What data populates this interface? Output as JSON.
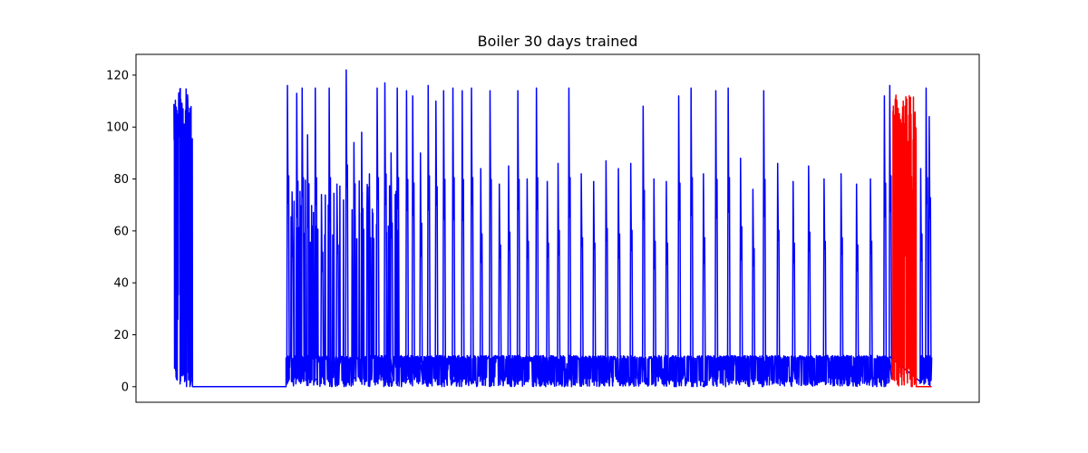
{
  "chart_data": {
    "type": "line",
    "title": "Boiler 30 days trained",
    "xlabel": "",
    "ylabel": "",
    "x_ticks_visible": false,
    "ylim": [
      -6,
      128
    ],
    "y_ticks": [
      0,
      20,
      40,
      60,
      80,
      100,
      120
    ],
    "grid": false,
    "legend": "none",
    "series": [
      {
        "color": "#0000ff",
        "description_x": "time index (unlabeled)",
        "segments": [
          {
            "type": "noise_burst",
            "x_range": [
              0.0,
              0.024
            ],
            "low": 0,
            "high": 115
          },
          {
            "type": "flat",
            "x_range": [
              0.024,
              0.145
            ],
            "value": 0
          },
          {
            "type": "burst_region",
            "x_range": [
              0.145,
              0.925
            ],
            "baseline_low": 0,
            "baseline_high": 12
          },
          {
            "type": "burst_region",
            "x_range": [
              0.965,
              0.98
            ],
            "baseline_low": 0,
            "baseline_high": 12
          }
        ],
        "peaks": [
          {
            "x": 0.006,
            "y": 114
          },
          {
            "x": 0.012,
            "y": 110
          },
          {
            "x": 0.018,
            "y": 97
          },
          {
            "x": 0.146,
            "y": 116
          },
          {
            "x": 0.152,
            "y": 75
          },
          {
            "x": 0.158,
            "y": 113
          },
          {
            "x": 0.165,
            "y": 115
          },
          {
            "x": 0.172,
            "y": 97
          },
          {
            "x": 0.182,
            "y": 115
          },
          {
            "x": 0.19,
            "y": 74
          },
          {
            "x": 0.2,
            "y": 115
          },
          {
            "x": 0.21,
            "y": 78
          },
          {
            "x": 0.222,
            "y": 122
          },
          {
            "x": 0.232,
            "y": 94
          },
          {
            "x": 0.242,
            "y": 98
          },
          {
            "x": 0.252,
            "y": 82
          },
          {
            "x": 0.262,
            "y": 115
          },
          {
            "x": 0.272,
            "y": 117
          },
          {
            "x": 0.28,
            "y": 90
          },
          {
            "x": 0.288,
            "y": 115
          },
          {
            "x": 0.3,
            "y": 114
          },
          {
            "x": 0.308,
            "y": 112
          },
          {
            "x": 0.318,
            "y": 90
          },
          {
            "x": 0.328,
            "y": 116
          },
          {
            "x": 0.338,
            "y": 110
          },
          {
            "x": 0.348,
            "y": 114
          },
          {
            "x": 0.36,
            "y": 115
          },
          {
            "x": 0.372,
            "y": 114
          },
          {
            "x": 0.384,
            "y": 115
          },
          {
            "x": 0.396,
            "y": 84
          },
          {
            "x": 0.408,
            "y": 114
          },
          {
            "x": 0.42,
            "y": 78
          },
          {
            "x": 0.432,
            "y": 85
          },
          {
            "x": 0.444,
            "y": 114
          },
          {
            "x": 0.456,
            "y": 80
          },
          {
            "x": 0.468,
            "y": 115
          },
          {
            "x": 0.482,
            "y": 79
          },
          {
            "x": 0.496,
            "y": 86
          },
          {
            "x": 0.51,
            "y": 115
          },
          {
            "x": 0.526,
            "y": 82
          },
          {
            "x": 0.542,
            "y": 79
          },
          {
            "x": 0.558,
            "y": 87
          },
          {
            "x": 0.574,
            "y": 84
          },
          {
            "x": 0.59,
            "y": 86
          },
          {
            "x": 0.606,
            "y": 108
          },
          {
            "x": 0.62,
            "y": 80
          },
          {
            "x": 0.636,
            "y": 79
          },
          {
            "x": 0.652,
            "y": 112
          },
          {
            "x": 0.668,
            "y": 115
          },
          {
            "x": 0.684,
            "y": 82
          },
          {
            "x": 0.7,
            "y": 114
          },
          {
            "x": 0.716,
            "y": 115
          },
          {
            "x": 0.732,
            "y": 88
          },
          {
            "x": 0.748,
            "y": 76
          },
          {
            "x": 0.762,
            "y": 114
          },
          {
            "x": 0.78,
            "y": 86
          },
          {
            "x": 0.8,
            "y": 79
          },
          {
            "x": 0.82,
            "y": 85
          },
          {
            "x": 0.84,
            "y": 80
          },
          {
            "x": 0.862,
            "y": 82
          },
          {
            "x": 0.882,
            "y": 78
          },
          {
            "x": 0.9,
            "y": 80
          },
          {
            "x": 0.918,
            "y": 112
          },
          {
            "x": 0.925,
            "y": 116
          },
          {
            "x": 0.965,
            "y": 84
          },
          {
            "x": 0.972,
            "y": 115
          },
          {
            "x": 0.976,
            "y": 104
          }
        ]
      },
      {
        "color": "#ff0000",
        "description_x": "highlighted window (unlabeled)",
        "segments": [
          {
            "type": "dense_burst",
            "x_range": [
              0.928,
              0.96
            ],
            "low": 0,
            "high": 113
          },
          {
            "type": "flat",
            "x_range": [
              0.96,
              0.98
            ],
            "value": 0
          }
        ]
      }
    ]
  }
}
